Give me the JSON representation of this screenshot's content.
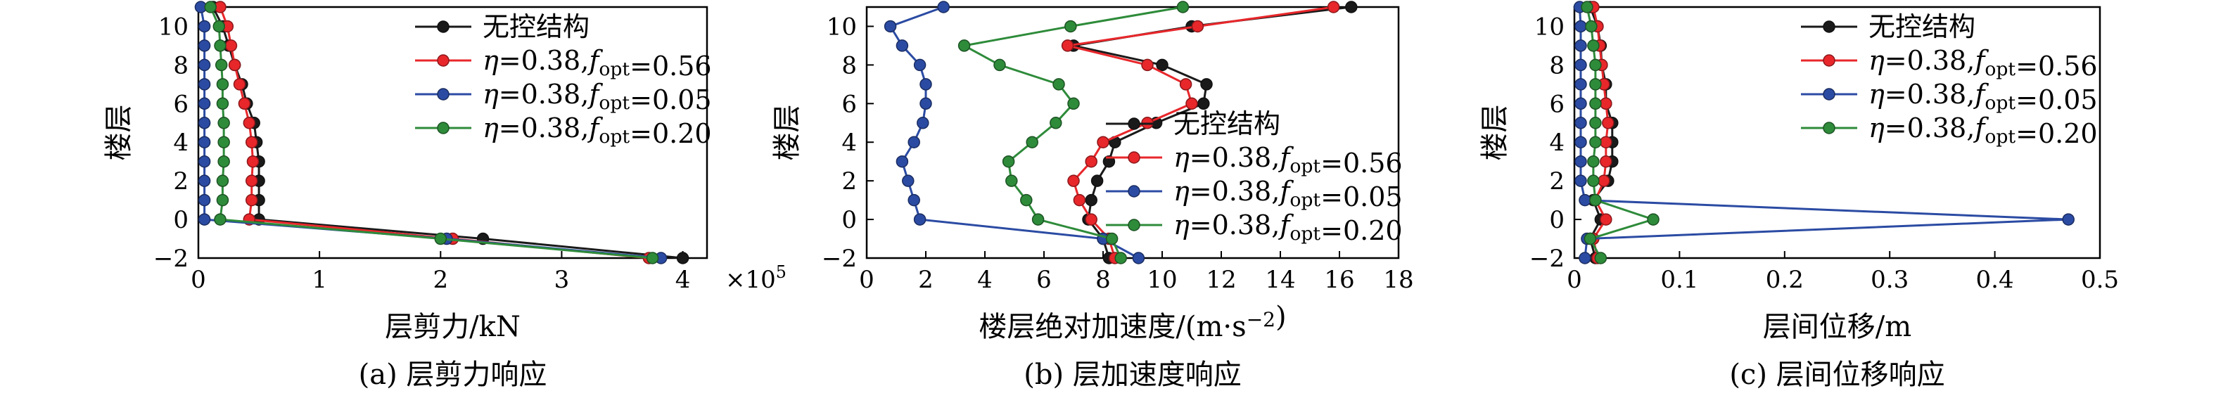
{
  "colors": {
    "black": "#1a1a1a",
    "red": "#e8272b",
    "blue": "#2b4ba3",
    "green": "#2e8b3a"
  },
  "legend": [
    {
      "label": "无控结构",
      "color": "black"
    },
    {
      "label": "η=0.38,f_opt=0.56",
      "color": "red"
    },
    {
      "label": "η=0.38,f_opt=0.05",
      "color": "blue"
    },
    {
      "label": "η=0.38,f_opt=0.20",
      "color": "green"
    }
  ],
  "chart_data": [
    {
      "type": "line",
      "caption": "(a) 层剪力响应",
      "xlabel": "层剪力/kN",
      "ylabel": "楼层",
      "x_multiplier": "×10^5",
      "xlim": [
        0,
        4.2
      ],
      "ylim": [
        -2,
        11
      ],
      "xticks": [
        "0",
        "1",
        "2",
        "3",
        "4"
      ],
      "yticks": [
        "-2",
        "0",
        "2",
        "4",
        "6",
        "8",
        "10"
      ],
      "legend_position": "top-right",
      "y": [
        -2,
        -1,
        0,
        1,
        2,
        3,
        4,
        5,
        6,
        7,
        8,
        9,
        10,
        11
      ],
      "series": [
        {
          "name": "无控结构",
          "color": "black",
          "values": [
            4.0,
            2.35,
            0.5,
            0.5,
            0.5,
            0.5,
            0.48,
            0.46,
            0.4,
            0.36,
            0.3,
            0.25,
            0.2,
            0.12
          ]
        },
        {
          "name": "η=0.38,f_opt=0.56",
          "color": "red",
          "values": [
            3.72,
            2.1,
            0.42,
            0.44,
            0.44,
            0.45,
            0.44,
            0.42,
            0.38,
            0.34,
            0.3,
            0.27,
            0.24,
            0.18
          ]
        },
        {
          "name": "η=0.38,f_opt=0.05",
          "color": "blue",
          "values": [
            3.82,
            2.05,
            0.05,
            0.05,
            0.05,
            0.05,
            0.05,
            0.05,
            0.05,
            0.05,
            0.05,
            0.05,
            0.05,
            0.02
          ]
        },
        {
          "name": "η=0.38,f_opt=0.20",
          "color": "green",
          "values": [
            3.75,
            2.0,
            0.18,
            0.2,
            0.2,
            0.21,
            0.21,
            0.21,
            0.2,
            0.2,
            0.19,
            0.18,
            0.17,
            0.1
          ]
        }
      ]
    },
    {
      "type": "line",
      "caption": "(b) 层加速度响应",
      "xlabel": "楼层绝对加速度/(m·s^-2)",
      "ylabel": "楼层",
      "xlim": [
        0,
        18
      ],
      "ylim": [
        -2,
        11
      ],
      "xticks": [
        "0",
        "2",
        "4",
        "6",
        "8",
        "10",
        "12",
        "14",
        "16",
        "18"
      ],
      "yticks": [
        "-2",
        "0",
        "2",
        "4",
        "6",
        "8",
        "10"
      ],
      "legend_position": "center-right",
      "y": [
        -2,
        -1,
        0,
        1,
        2,
        3,
        4,
        5,
        6,
        7,
        8,
        9,
        10,
        11
      ],
      "series": [
        {
          "name": "无控结构",
          "color": "black",
          "values": [
            8.2,
            8.0,
            7.5,
            7.6,
            7.8,
            8.2,
            8.4,
            9.8,
            11.4,
            11.5,
            10.0,
            7.0,
            11.0,
            16.4
          ]
        },
        {
          "name": "η=0.38,f_opt=0.56",
          "color": "red",
          "values": [
            8.4,
            8.2,
            7.6,
            7.2,
            7.0,
            7.6,
            8.0,
            9.5,
            11.0,
            10.8,
            9.5,
            6.8,
            11.2,
            15.8
          ]
        },
        {
          "name": "η=0.38,f_opt=0.05",
          "color": "blue",
          "values": [
            9.2,
            8.0,
            1.8,
            1.6,
            1.4,
            1.2,
            1.6,
            1.9,
            2.0,
            2.0,
            1.8,
            1.2,
            0.8,
            2.6
          ]
        },
        {
          "name": "η=0.38,f_opt=0.20",
          "color": "green",
          "values": [
            8.6,
            8.3,
            5.8,
            5.4,
            4.9,
            4.8,
            5.6,
            6.4,
            7.0,
            6.5,
            4.5,
            3.3,
            6.9,
            10.7
          ]
        }
      ]
    },
    {
      "type": "line",
      "caption": "(c) 层间位移响应",
      "xlabel": "层间位移/m",
      "ylabel": "楼层",
      "xlim": [
        0,
        0.5
      ],
      "ylim": [
        -2,
        11
      ],
      "xticks": [
        "0",
        "0.1",
        "0.2",
        "0.3",
        "0.4",
        "0.5"
      ],
      "yticks": [
        "-2",
        "0",
        "2",
        "4",
        "6",
        "8",
        "10"
      ],
      "legend_position": "top-right",
      "y": [
        -2,
        -1,
        0,
        1,
        2,
        3,
        4,
        5,
        6,
        7,
        8,
        9,
        10,
        11
      ],
      "series": [
        {
          "name": "无控结构",
          "color": "black",
          "values": [
            0.02,
            0.015,
            0.025,
            0.018,
            0.032,
            0.036,
            0.036,
            0.036,
            0.03,
            0.03,
            0.026,
            0.025,
            0.022,
            0.015
          ]
        },
        {
          "name": "η=0.38,f_opt=0.56",
          "color": "red",
          "values": [
            0.022,
            0.018,
            0.03,
            0.02,
            0.028,
            0.03,
            0.03,
            0.032,
            0.03,
            0.028,
            0.026,
            0.024,
            0.022,
            0.018
          ]
        },
        {
          "name": "η=0.38,f_opt=0.05",
          "color": "blue",
          "values": [
            0.01,
            0.012,
            0.47,
            0.01,
            0.006,
            0.006,
            0.006,
            0.006,
            0.006,
            0.006,
            0.006,
            0.006,
            0.006,
            0.005
          ]
        },
        {
          "name": "η=0.38,f_opt=0.20",
          "color": "green",
          "values": [
            0.025,
            0.015,
            0.075,
            0.02,
            0.018,
            0.018,
            0.02,
            0.02,
            0.02,
            0.02,
            0.02,
            0.018,
            0.016,
            0.012
          ]
        }
      ]
    }
  ]
}
